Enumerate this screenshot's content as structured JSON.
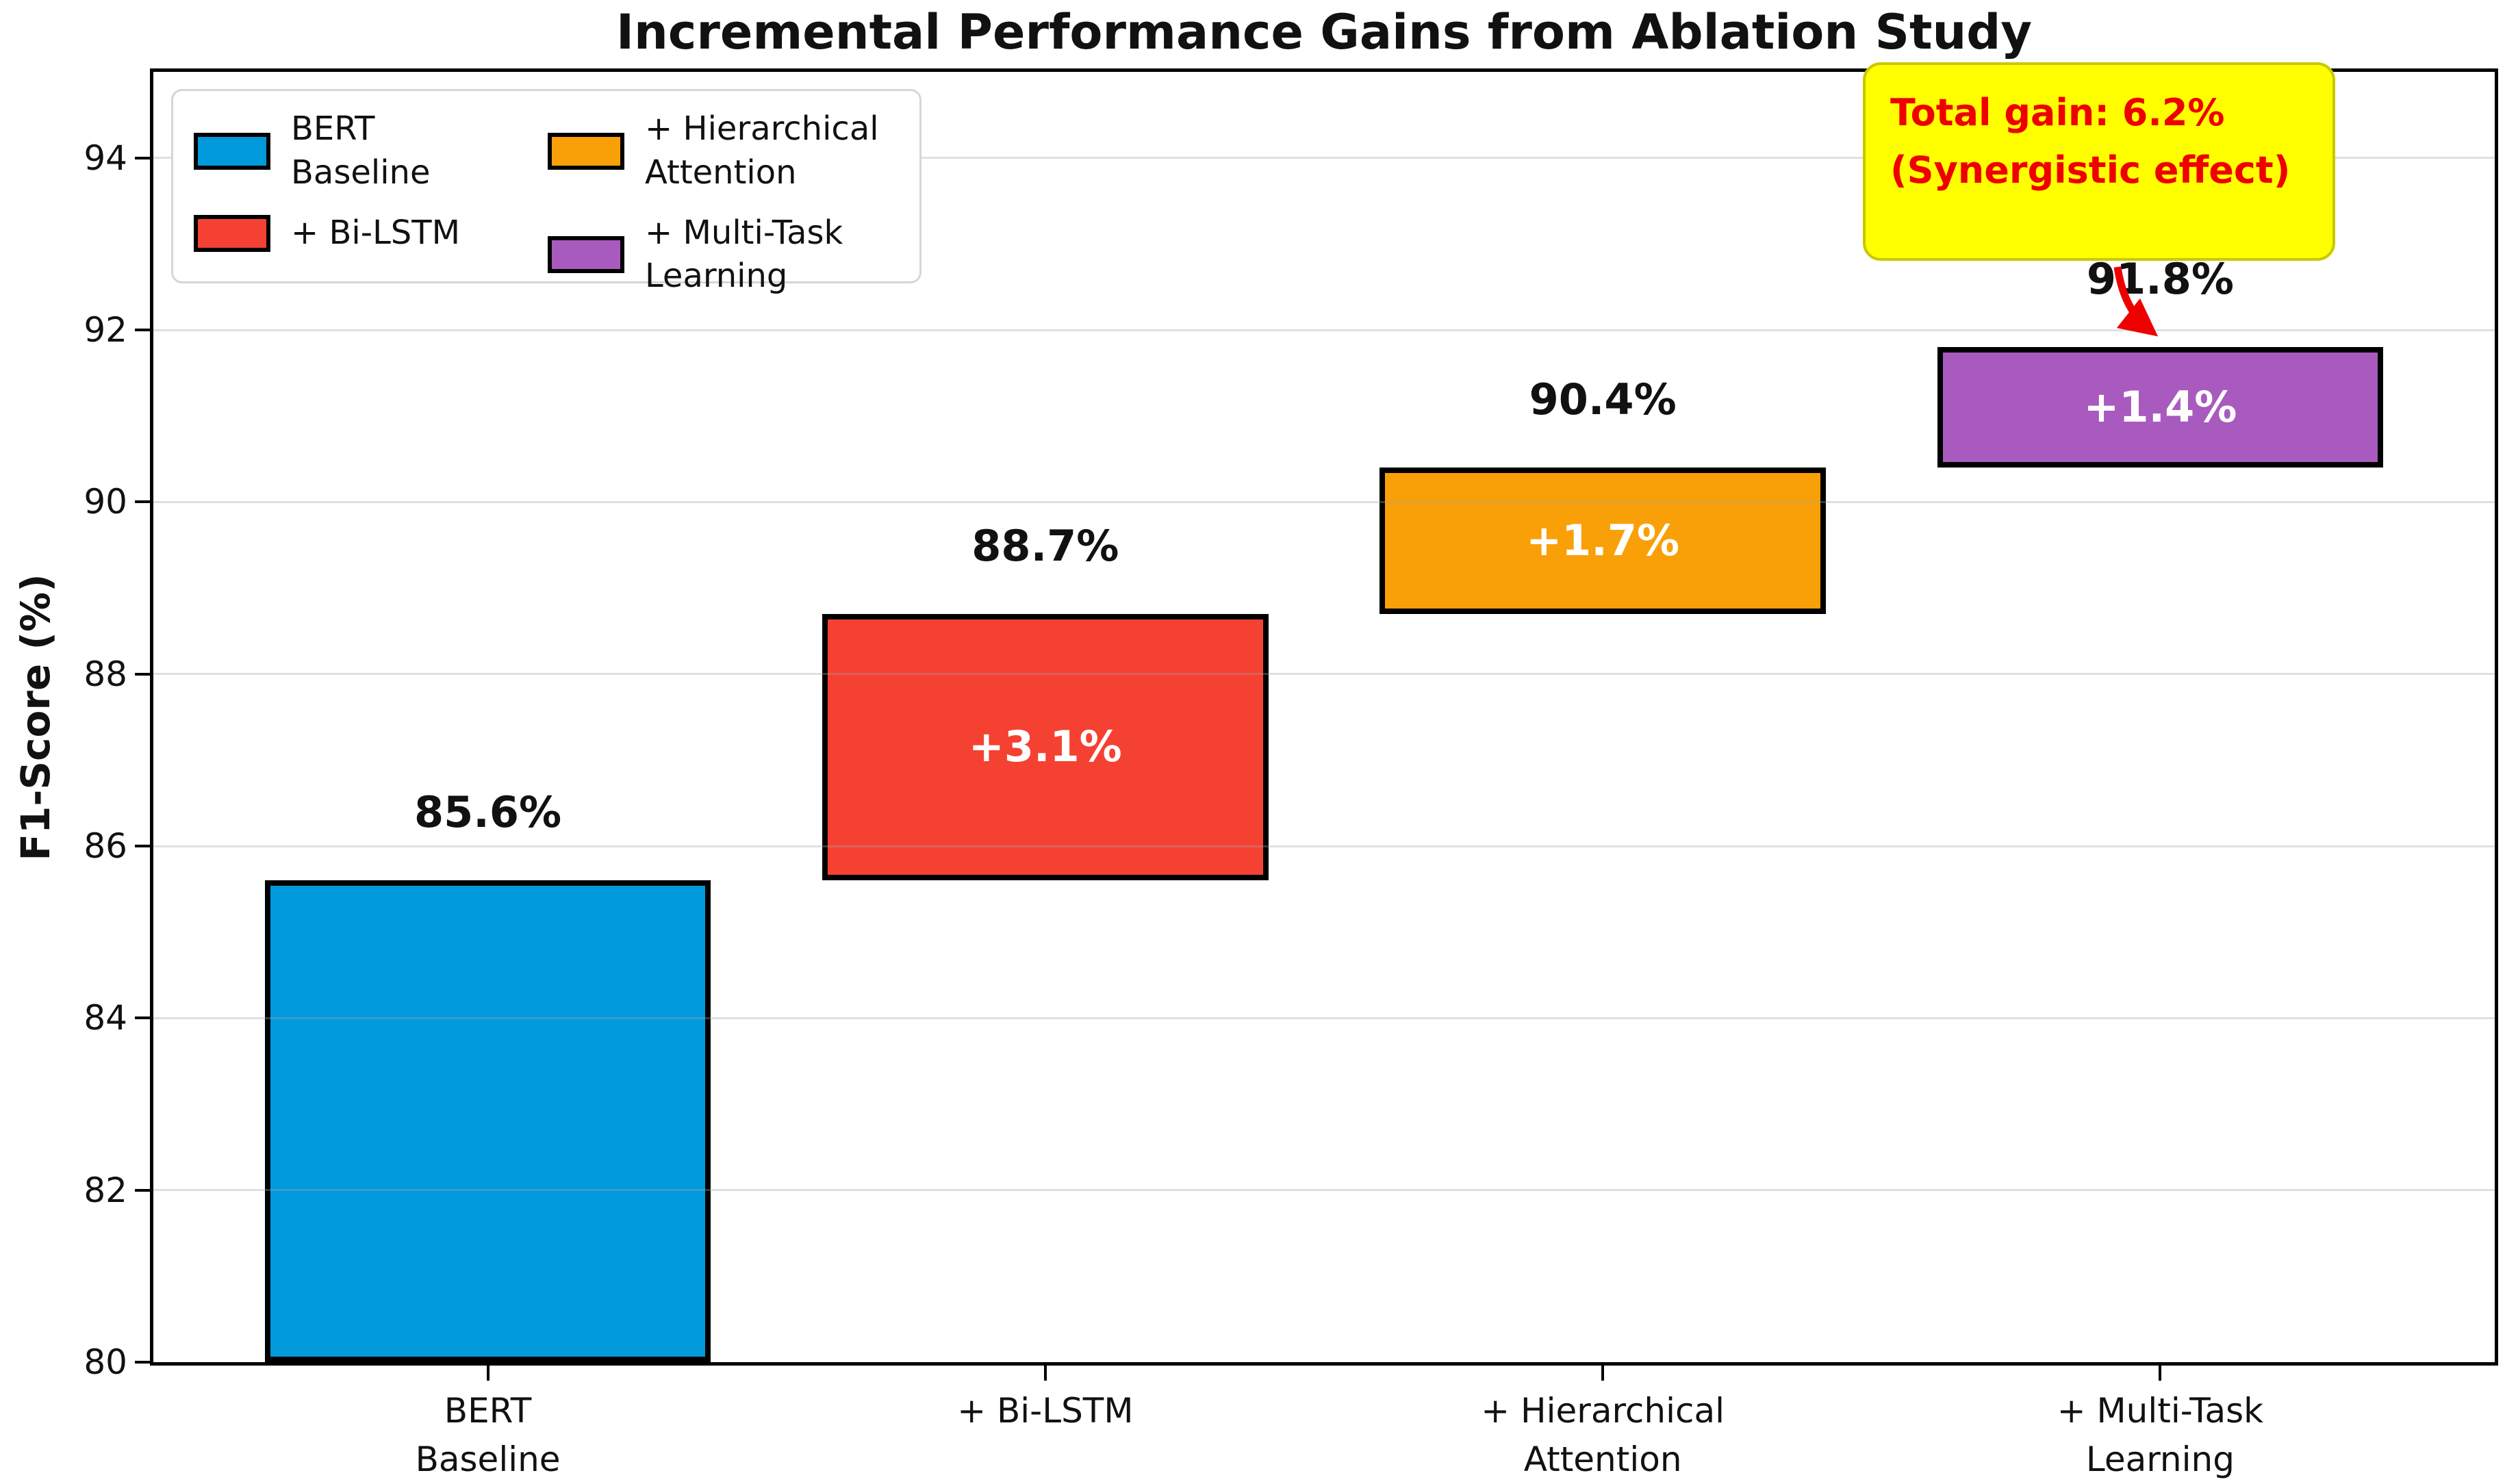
{
  "chart_data": {
    "type": "bar",
    "subtype": "waterfall",
    "title": "Incremental Performance Gains from Ablation Study",
    "xlabel": "",
    "ylabel": "F1-Score (%)",
    "ylim": [
      80,
      95
    ],
    "yticks": [
      80,
      82,
      84,
      86,
      88,
      90,
      92,
      94
    ],
    "grid": true,
    "legend_position": "upper left",
    "categories": [
      "BERT Baseline",
      "+ Bi-LSTM",
      "+ Hierarchical Attention",
      "+ Multi-Task Learning"
    ],
    "bars": [
      {
        "label": "BERT Baseline",
        "tick_lines": [
          "BERT",
          "Baseline"
        ],
        "base": 80.0,
        "value": 85.6,
        "total_label": "85.6%",
        "gain_label": null,
        "color": "#0099DC"
      },
      {
        "label": "+ Bi-LSTM",
        "tick_lines": [
          "+ Bi-LSTM"
        ],
        "base": 85.6,
        "value": 88.7,
        "total_label": "88.7%",
        "gain_label": "+3.1%",
        "color": "#F54132"
      },
      {
        "label": "+ Hierarchical Attention",
        "tick_lines": [
          "+ Hierarchical",
          "Attention"
        ],
        "base": 88.7,
        "value": 90.4,
        "total_label": "90.4%",
        "gain_label": "+1.7%",
        "color": "#F9A008"
      },
      {
        "label": "+ Multi-Task Learning",
        "tick_lines": [
          "+ Multi-Task",
          "Learning"
        ],
        "base": 90.4,
        "value": 91.8,
        "total_label": "91.8%",
        "gain_label": "+1.4%",
        "color": "#A85ABE"
      }
    ],
    "legend": {
      "entries": [
        {
          "lines": [
            "BERT",
            "Baseline"
          ],
          "color": "#0099DC"
        },
        {
          "lines": [
            "+ Bi-LSTM"
          ],
          "color": "#F54132"
        },
        {
          "lines": [
            "+ Hierarchical",
            "Attention"
          ],
          "color": "#F9A008"
        },
        {
          "lines": [
            "+ Multi-Task",
            "Learning"
          ],
          "color": "#A85ABE"
        }
      ],
      "columns": 2
    },
    "annotation": {
      "line1": "Total gain: 6.2%",
      "line2": "(Synergistic effect)",
      "bg_color": "#FFFF00",
      "border_color": "#C9C900",
      "text_color": "#EE0000",
      "arrow_color": "#EE0000"
    }
  }
}
